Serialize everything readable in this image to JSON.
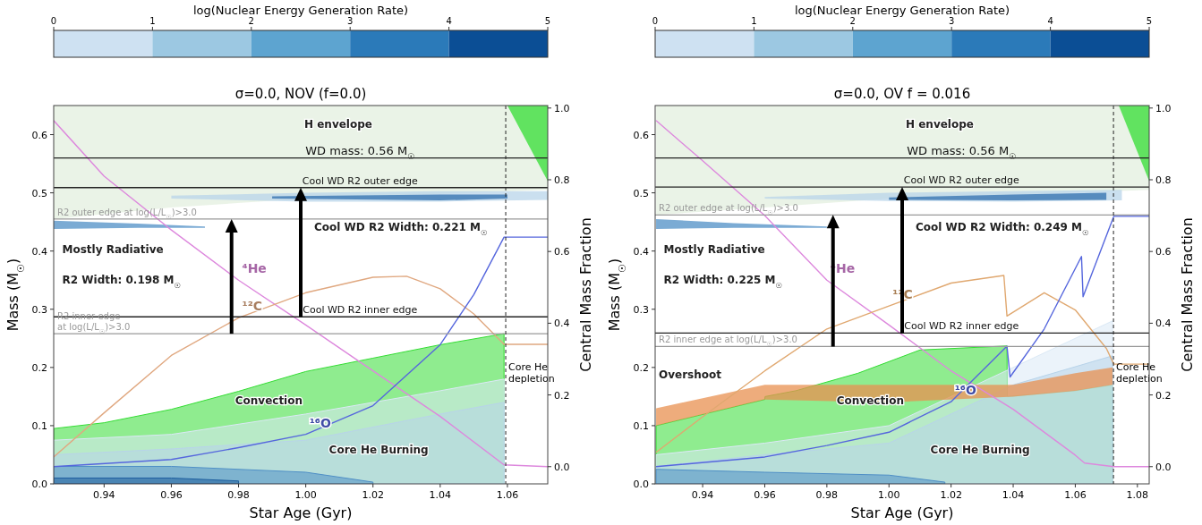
{
  "chart_data": [
    {
      "type": "line",
      "title": "σ=0.0, NOV (f=0.0)",
      "xlabel": "Star Age (Gyr)",
      "ylabel": "Mass (M$_{☉}$)",
      "y2label": "Central Mass Fraction",
      "clabel": "log(Nuclear Energy Generation Rate)",
      "clim": [
        0,
        5
      ],
      "cticks": [
        0,
        1,
        2,
        3,
        4,
        5
      ],
      "xlim": [
        0.925,
        1.072
      ],
      "xticks": [
        {
          "value": 0.94,
          "label": "0.94"
        },
        {
          "value": 0.96,
          "label": "0.96"
        },
        {
          "value": 0.98,
          "label": "0.98"
        },
        {
          "value": 1.0,
          "label": "1.00"
        },
        {
          "value": 1.02,
          "label": "1.02"
        },
        {
          "value": 1.04,
          "label": "1.04"
        },
        {
          "value": 1.06,
          "label": "1.06"
        }
      ],
      "ylim": [
        0,
        0.65
      ],
      "yticks": [
        {
          "value": 0,
          "label": "0.0"
        },
        {
          "value": 0.1,
          "label": "0.1"
        },
        {
          "value": 0.2,
          "label": "0.2"
        },
        {
          "value": 0.3,
          "label": "0.3"
        },
        {
          "value": 0.4,
          "label": "0.4"
        },
        {
          "value": 0.5,
          "label": "0.5"
        },
        {
          "value": 0.6,
          "label": "0.6"
        }
      ],
      "y2lim": [
        -0.048,
        1.007
      ],
      "y2ticks": [
        {
          "value": 0,
          "label": "0.0"
        },
        {
          "value": 0.2,
          "label": "0.2"
        },
        {
          "value": 0.4,
          "label": "0.4"
        },
        {
          "value": 0.6,
          "label": "0.6"
        },
        {
          "value": 0.8,
          "label": "0.8"
        },
        {
          "value": 1.0,
          "label": "1.0"
        }
      ],
      "series": [
        {
          "color": "#e3efdf",
          "x": [
            0.925,
            0.96,
            1.0,
            1.072
          ],
          "values": [
            null,
            null,
            null,
            null
          ],
          "lower": [
            0.455,
            0.475,
            0.49,
            0.505
          ],
          "upper": [
            0.65,
            0.65,
            0.65,
            0.65
          ]
        },
        {
          "type": "area",
          "color": "#33dd33",
          "x": [
            0.925,
            0.94,
            0.96,
            0.98,
            1.0,
            1.02,
            1.04,
            1.059
          ],
          "values": [
            0.095,
            0.105,
            0.128,
            0.159,
            0.193,
            0.216,
            0.239,
            0.258
          ]
        },
        {
          "type": "area",
          "color": "#dbe9f6",
          "x": [
            0.925,
            0.96,
            1.0,
            1.04,
            1.059
          ],
          "values": [
            0.075,
            0.085,
            0.12,
            0.16,
            0.18
          ]
        },
        {
          "type": "area",
          "color": "#b8d4ea",
          "x": [
            0.925,
            0.96,
            1.0,
            1.04,
            1.059
          ],
          "values": [
            0.05,
            0.06,
            0.075,
            0.12,
            0.14
          ]
        },
        {
          "type": "area",
          "color": "#4f8fc6",
          "x": [
            0.925,
            0.96,
            1.0,
            1.02
          ],
          "values": [
            0.03,
            0.03,
            0.02,
            0.003
          ]
        },
        {
          "type": "area",
          "color": "#1f5f9e",
          "x": [
            0.925,
            0.96,
            0.98
          ],
          "values": [
            0.01,
            0.01,
            0.005
          ]
        },
        {
          "color": "#b8d4ea",
          "x": [
            0.96,
            1.0,
            1.04,
            1.072
          ],
          "values": [
            null,
            null,
            null,
            null
          ],
          "lower": [
            0.49,
            0.485,
            0.485,
            0.488
          ],
          "upper": [
            0.495,
            0.5,
            0.503,
            0.503
          ]
        },
        {
          "color": "#2f6fae",
          "x": [
            0.99,
            1.04,
            1.06
          ],
          "values": [
            null,
            null,
            null
          ],
          "lower": [
            0.49,
            0.487,
            0.49
          ],
          "upper": [
            0.494,
            0.497,
            0.497
          ]
        },
        {
          "color": "#4f8fc6",
          "x": [
            0.925,
            0.95,
            0.97
          ],
          "values": [
            null,
            null,
            null
          ],
          "lower": [
            0.438,
            0.44,
            0.44
          ],
          "upper": [
            0.452,
            0.447,
            0.442
          ]
        },
        {
          "color": "#33dd33",
          "x": [
            1.06,
            1.072
          ],
          "values": [
            null,
            null
          ],
          "lower": [
            0.65,
            0.52
          ],
          "upper": [
            0.65,
            0.65
          ]
        },
        {
          "name": "⁴He",
          "color": "#dd88dd",
          "axis": "y2",
          "x": [
            0.925,
            0.94,
            0.96,
            0.98,
            1.0,
            1.02,
            1.04,
            1.059,
            1.072
          ],
          "values": [
            0.965,
            0.81,
            0.66,
            0.52,
            0.395,
            0.267,
            0.14,
            0.005,
            0.0
          ]
        },
        {
          "name": "¹²C",
          "color": "#e0a880",
          "axis": "y2",
          "x": [
            0.925,
            0.94,
            0.96,
            0.98,
            1.0,
            1.02,
            1.03,
            1.04,
            1.05,
            1.059,
            1.072
          ],
          "values": [
            0.027,
            0.15,
            0.31,
            0.415,
            0.485,
            0.528,
            0.531,
            0.496,
            0.426,
            0.341,
            0.341
          ]
        },
        {
          "name": "¹⁶O",
          "color": "#5566dd",
          "axis": "y2",
          "x": [
            0.925,
            0.96,
            0.98,
            1.0,
            1.02,
            1.04,
            1.05,
            1.059,
            1.072
          ],
          "values": [
            0.0,
            0.02,
            0.053,
            0.09,
            0.17,
            0.34,
            0.48,
            0.64,
            0.64
          ]
        }
      ],
      "ref_lines": [
        {
          "axis": "y",
          "value": 0.56,
          "label": "WD mass: 0.56 M$_{☉}$"
        },
        {
          "axis": "y",
          "value": 0.509,
          "label": "Cool WD R2 outer edge"
        },
        {
          "axis": "y",
          "value": 0.455,
          "label": "R2 outer edge at log(L/L$_{☉}$)>3.0",
          "color": "#999999"
        },
        {
          "axis": "y",
          "value": 0.287,
          "label": "Cool WD R2 inner edge"
        },
        {
          "axis": "y",
          "value": 0.258,
          "label": "R2 inner edge\nat log(L/L$_{☉}$)>3.0",
          "color": "#999999"
        },
        {
          "axis": "x",
          "value": 1.0595,
          "label": "Core He\ndepletion",
          "line_style": "dashed"
        }
      ],
      "annotations": [
        "H envelope",
        "Mostly Radiative",
        "R2 Width: 0.198 M$_{☉}$",
        "Cool WD R2 Width: 0.221 M$_{☉}$",
        "Convection",
        "Core He Burning"
      ]
    },
    {
      "type": "line",
      "title": "σ=0.0, OV f = 0.016",
      "xlabel": "Star Age (Gyr)",
      "ylabel": "Mass (M$_{☉}$)",
      "y2label": "Central Mass Fraction",
      "clabel": "log(Nuclear Energy Generation Rate)",
      "clim": [
        0,
        5
      ],
      "cticks": [
        0,
        1,
        2,
        3,
        4,
        5
      ],
      "xlim": [
        0.9247,
        1.0838
      ],
      "xticks": [
        {
          "value": 0.94,
          "label": "0.94"
        },
        {
          "value": 0.96,
          "label": "0.96"
        },
        {
          "value": 0.98,
          "label": "0.98"
        },
        {
          "value": 1.0,
          "label": "1.00"
        },
        {
          "value": 1.02,
          "label": "1.02"
        },
        {
          "value": 1.04,
          "label": "1.04"
        },
        {
          "value": 1.06,
          "label": "1.06"
        },
        {
          "value": 1.08,
          "label": "1.08"
        }
      ],
      "ylim": [
        0,
        0.65
      ],
      "yticks": [
        {
          "value": 0,
          "label": "0.0"
        },
        {
          "value": 0.1,
          "label": "0.1"
        },
        {
          "value": 0.2,
          "label": "0.2"
        },
        {
          "value": 0.3,
          "label": "0.3"
        },
        {
          "value": 0.4,
          "label": "0.4"
        },
        {
          "value": 0.5,
          "label": "0.5"
        },
        {
          "value": 0.6,
          "label": "0.6"
        }
      ],
      "y2lim": [
        -0.048,
        1.007
      ],
      "y2ticks": [
        {
          "value": 0,
          "label": "0.0"
        },
        {
          "value": 0.2,
          "label": "0.2"
        },
        {
          "value": 0.4,
          "label": "0.4"
        },
        {
          "value": 0.6,
          "label": "0.6"
        },
        {
          "value": 0.8,
          "label": "0.8"
        },
        {
          "value": 1.0,
          "label": "1.0"
        }
      ],
      "series": [
        {
          "color": "#e3efdf",
          "x": [
            0.925,
            0.96,
            1.0,
            1.0838
          ],
          "values": [
            null,
            null,
            null,
            null
          ],
          "lower": [
            0.462,
            0.475,
            0.49,
            0.505
          ],
          "upper": [
            0.65,
            0.65,
            0.65,
            0.65
          ]
        },
        {
          "type": "area",
          "color": "#33dd33",
          "x": [
            0.925,
            0.96,
            0.9601,
            0.97,
            0.99,
            1.01,
            1.038,
            1.0381,
            1.06,
            1.072
          ],
          "values": [
            0.1,
            0.145,
            0.15,
            0.16,
            0.19,
            0.23,
            0.237,
            0.15,
            0.16,
            0.17
          ]
        },
        {
          "type": "area",
          "color": "#dbe9f6",
          "x": [
            0.925,
            0.96,
            1.0,
            1.04,
            1.072
          ],
          "values": [
            0.05,
            0.07,
            0.1,
            0.2,
            0.28
          ]
        },
        {
          "type": "area",
          "color": "#b8d4ea",
          "x": [
            0.925,
            0.96,
            1.0,
            1.04,
            1.072
          ],
          "values": [
            0.03,
            0.05,
            0.07,
            0.17,
            0.22
          ]
        },
        {
          "type": "area",
          "color": "#4f8fc6",
          "x": [
            0.925,
            0.96,
            1.0,
            1.018
          ],
          "values": [
            0.025,
            0.02,
            0.015,
            0.003
          ]
        },
        {
          "color": "#b8d4ea",
          "x": [
            0.96,
            1.0,
            1.04,
            1.075
          ],
          "values": [
            null,
            null,
            null,
            null
          ],
          "lower": [
            0.49,
            0.486,
            0.485,
            0.487
          ],
          "upper": [
            0.493,
            0.5,
            0.503,
            0.505
          ]
        },
        {
          "color": "#2f6fae",
          "x": [
            1.0,
            1.04,
            1.07
          ],
          "values": [
            null,
            null,
            null
          ],
          "lower": [
            0.488,
            0.487,
            0.488
          ],
          "upper": [
            0.492,
            0.497,
            0.5
          ]
        },
        {
          "color": "#4f8fc6",
          "x": [
            0.925,
            0.95,
            0.98
          ],
          "values": [
            null,
            null,
            null
          ],
          "lower": [
            0.438,
            0.44,
            0.44
          ],
          "upper": [
            0.455,
            0.448,
            0.442
          ]
        },
        {
          "color": "#e89050",
          "x": [
            0.925,
            0.96,
            1.0,
            1.04,
            1.06,
            1.072
          ],
          "values": [
            null,
            null,
            null,
            null,
            null,
            null
          ],
          "lower": [
            0.1,
            0.145,
            0.14,
            0.15,
            0.16,
            0.17
          ],
          "upper": [
            0.13,
            0.17,
            0.17,
            0.17,
            0.19,
            0.2
          ]
        },
        {
          "color": "#33dd33",
          "x": [
            1.074,
            1.0838
          ],
          "values": [
            null,
            null
          ],
          "lower": [
            0.65,
            0.52
          ],
          "upper": [
            0.65,
            0.65
          ]
        },
        {
          "name": "⁴He",
          "color": "#dd88dd",
          "axis": "y2",
          "x": [
            0.925,
            0.94,
            0.96,
            0.98,
            1.0,
            1.02,
            1.04,
            1.06,
            1.063,
            1.0724,
            1.0838
          ],
          "values": [
            0.965,
            0.853,
            0.7,
            0.52,
            0.395,
            0.267,
            0.16,
            0.032,
            0.01,
            0.0,
            0.0
          ]
        },
        {
          "name": "¹²C",
          "color": "#e0a870",
          "axis": "y2",
          "x": [
            0.925,
            0.94,
            0.96,
            0.98,
            1.0,
            1.02,
            1.037,
            1.038,
            1.05,
            1.06,
            1.07,
            1.0724,
            1.0838
          ],
          "values": [
            0.04,
            0.139,
            0.267,
            0.384,
            0.448,
            0.512,
            0.533,
            0.42,
            0.485,
            0.437,
            0.33,
            0.286,
            0.286
          ]
        },
        {
          "name": "¹⁶O",
          "color": "#5566dd",
          "axis": "y2",
          "x": [
            0.925,
            0.96,
            0.98,
            1.0,
            1.02,
            1.038,
            1.039,
            1.05,
            1.062,
            1.0625,
            1.0724,
            1.0838
          ],
          "values": [
            0.0,
            0.027,
            0.059,
            0.096,
            0.181,
            0.336,
            0.25,
            0.384,
            0.586,
            0.474,
            0.698,
            0.698
          ]
        }
      ],
      "ref_lines": [
        {
          "axis": "y",
          "value": 0.56,
          "label": "WD mass: 0.56 M$_{☉}$"
        },
        {
          "axis": "y",
          "value": 0.51,
          "label": "Cool WD R2 outer edge"
        },
        {
          "axis": "y",
          "value": 0.462,
          "label": "R2 outer edge at log(L/L$_{☉}$)>3.0",
          "color": "#999999"
        },
        {
          "axis": "y",
          "value": 0.259,
          "label": "Cool WD R2 inner edge"
        },
        {
          "axis": "y",
          "value": 0.236,
          "label": "R2 inner edge at log(L/L$_{☉}$)>3.0",
          "color": "#999999"
        },
        {
          "axis": "x",
          "value": 1.0723,
          "label": "Core He\ndepletion",
          "line_style": "dashed"
        }
      ],
      "annotations": [
        "H envelope",
        "Mostly Radiative",
        "R2 Width: 0.225 M$_{☉}$",
        "Cool WD R2 Width: 0.249 M$_{☉}$",
        "Convection",
        "Core He Burning",
        "Overshoot"
      ]
    }
  ]
}
